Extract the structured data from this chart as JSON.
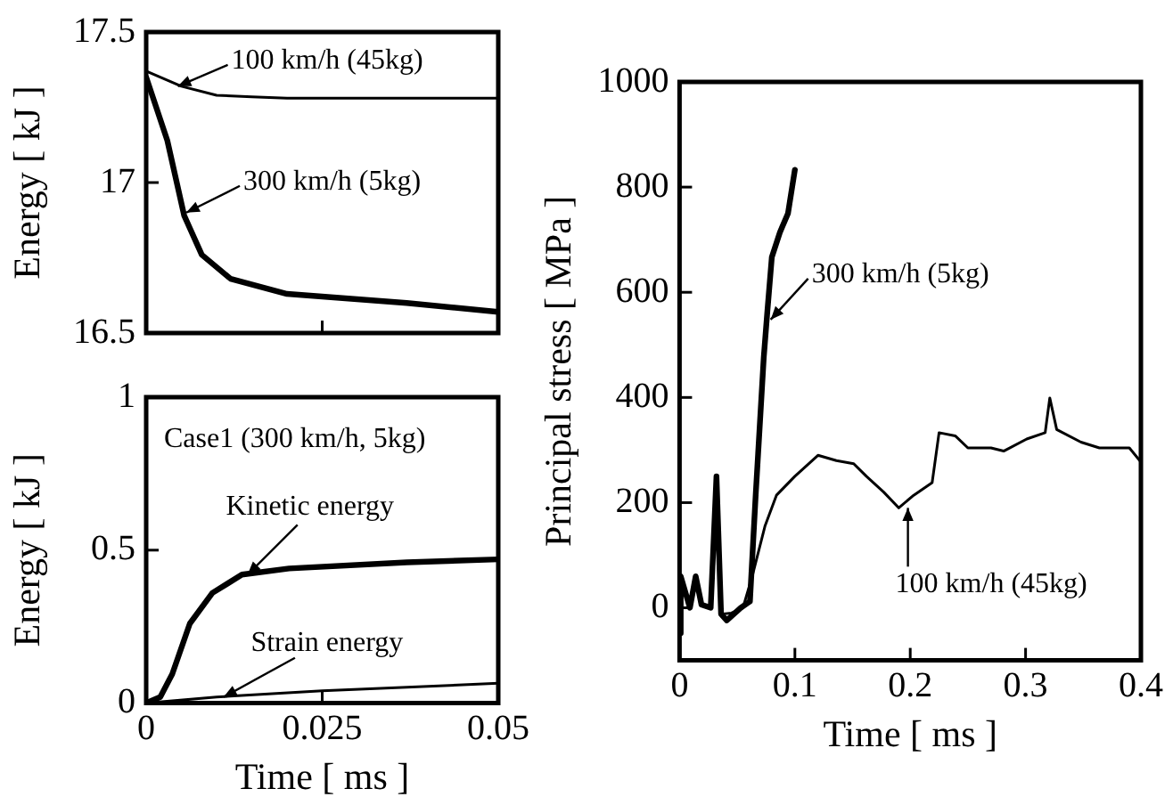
{
  "chart_data": [
    {
      "type": "line",
      "ylabel": "Energy [ kJ ]",
      "xlim": [
        0,
        0.05
      ],
      "xticks": [
        0,
        0.025,
        0.05
      ],
      "ylim": [
        16.5,
        17.5
      ],
      "yticks": [
        16.5,
        17,
        17.5
      ],
      "tick_labels": "y",
      "grid": false,
      "legend": false,
      "marker": "none",
      "line_style": "solid",
      "series": [
        {
          "color": "#000000",
          "x": [
            0,
            0.005,
            0.01,
            0.015,
            0.02,
            0.05
          ],
          "values": [
            17.37,
            17.32,
            17.29,
            17.285,
            17.28,
            17.28
          ]
        },
        {
          "color": "#000000",
          "x": [
            0,
            0.003,
            0.0054,
            0.0079,
            0.012,
            0.02,
            0.037,
            0.05
          ],
          "values": [
            17.35,
            17.14,
            16.89,
            16.76,
            16.68,
            16.63,
            16.6,
            16.57
          ]
        }
      ],
      "annotations": [
        {
          "text": "100 km/h (45kg)",
          "x": 0.0045,
          "y": 17.32
        },
        {
          "text": "300 km/h (5kg)",
          "x": 0.0057,
          "y": 16.9
        }
      ]
    },
    {
      "type": "line",
      "ylabel": "Energy [ kJ ]",
      "xlabel": "Time [ ms ]",
      "xlim": [
        0,
        0.05
      ],
      "xticks": [
        0,
        0.025,
        0.05
      ],
      "ylim": [
        0,
        1
      ],
      "yticks": [
        0,
        0.5,
        1
      ],
      "grid": false,
      "legend": false,
      "marker": "none",
      "line_style": "solid",
      "series": [
        {
          "color": "#000000",
          "x": [
            0,
            0.002,
            0.0037,
            0.0062,
            0.0094,
            0.0136,
            0.0203,
            0.037,
            0.05
          ],
          "values": [
            0,
            0.02,
            0.095,
            0.26,
            0.36,
            0.42,
            0.44,
            0.46,
            0.47
          ]
        },
        {
          "color": "#000000",
          "x": [
            0,
            0.01,
            0.025,
            0.05
          ],
          "values": [
            0,
            0.02,
            0.04,
            0.065
          ]
        }
      ],
      "annotations": [
        "Case1 (300 km/h, 5kg)",
        {
          "text": "Kinetic energy",
          "x": 0.0144,
          "y": 0.42
        },
        {
          "text": "Strain energy",
          "x": 0.011,
          "y": 0.02
        }
      ]
    },
    {
      "type": "line",
      "ylabel": "Principal stress [ MPa ]",
      "xlabel": "Time [ ms ]",
      "xlim": [
        0,
        0.4
      ],
      "xticks": [
        0,
        0.1,
        0.2,
        0.3,
        0.4
      ],
      "ylim": [
        -100,
        1000
      ],
      "yticks": [
        0,
        200,
        400,
        600,
        800,
        1000
      ],
      "grid": false,
      "legend": false,
      "marker": "none",
      "line_style": "solid",
      "series": [
        {
          "color": "#000000",
          "x": [
            0,
            0.001,
            0.009,
            0.014,
            0.019,
            0.027,
            0.032,
            0.036,
            0.041,
            0.053,
            0.061,
            0.066,
            0.073,
            0.076,
            0.08,
            0.087,
            0.094,
            0.1
          ],
          "values": [
            -48,
            60,
            0,
            60,
            6,
            0,
            250,
            -12,
            -24,
            0,
            12,
            214,
            476,
            560,
            667,
            714,
            750,
            833
          ]
        },
        {
          "color": "#000000",
          "x": [
            0,
            0.001,
            0.009,
            0.014,
            0.019,
            0.027,
            0.032,
            0.036,
            0.045,
            0.055,
            0.063,
            0.074,
            0.084,
            0.1,
            0.12,
            0.136,
            0.151,
            0.162,
            0.177,
            0.19,
            0.203,
            0.219,
            0.225,
            0.239,
            0.25,
            0.27,
            0.281,
            0.301,
            0.317,
            0.321,
            0.327,
            0.348,
            0.364,
            0.39,
            0.399
          ],
          "values": [
            -48,
            60,
            0,
            60,
            6,
            0,
            250,
            -12,
            -10,
            0,
            60,
            155,
            214,
            250,
            290,
            280,
            274,
            250,
            220,
            190,
            214,
            238,
            333,
            327,
            304,
            304,
            298,
            321,
            333,
            399,
            339,
            315,
            304,
            304,
            280
          ]
        }
      ],
      "annotations": [
        {
          "text": "300 km/h (5kg)",
          "x": 0.079,
          "y": 548
        },
        {
          "text": "100 km/h (45kg)",
          "x": 0.198,
          "y": 190
        }
      ]
    }
  ]
}
